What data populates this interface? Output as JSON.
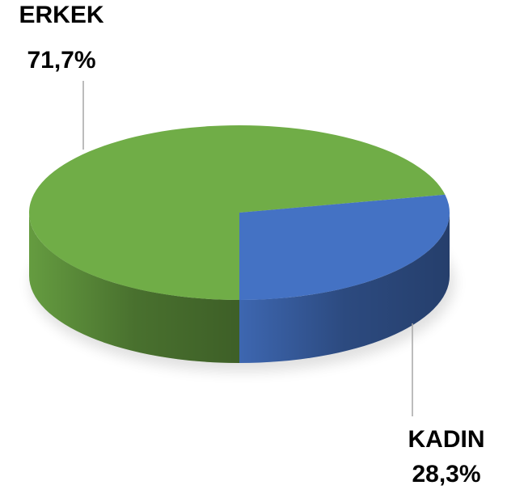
{
  "chart_data": {
    "type": "pie",
    "categories": [
      "ERKEK",
      "KADIN"
    ],
    "values": [
      71.7,
      28.3
    ],
    "value_labels": [
      "71,7%",
      "28,3%"
    ],
    "colors": [
      "#70ad47",
      "#4472c4"
    ]
  }
}
